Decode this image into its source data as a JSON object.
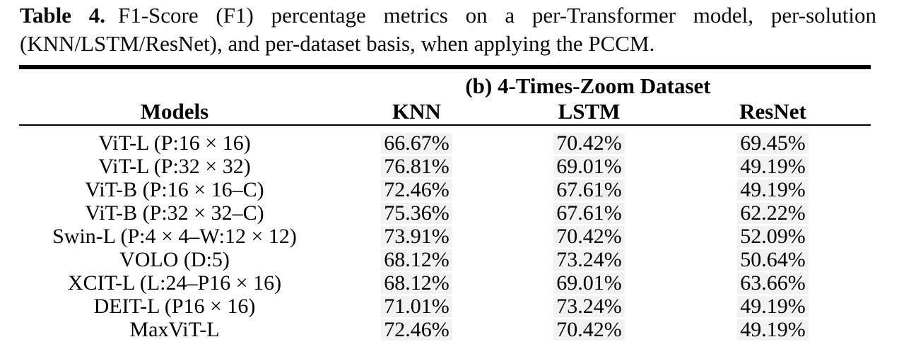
{
  "caption": {
    "label": "Table 4.",
    "line1": "F1-Score (F1) percentage metrics on a per-Transformer model, per-solution",
    "line2": "(KNN/LSTM/ResNet), and per-dataset basis, when applying the PCCM."
  },
  "table": {
    "group_header": "(b) 4-Times-Zoom Dataset",
    "columns": [
      "Models",
      "KNN",
      "LSTM",
      "ResNet"
    ],
    "rows": [
      {
        "model": "ViT-L (P:16 × 16)",
        "knn": "66.67%",
        "lstm": "70.42%",
        "resnet": "69.45%"
      },
      {
        "model": "ViT-L (P:32 × 32)",
        "knn": "76.81%",
        "lstm": "69.01%",
        "resnet": "49.19%"
      },
      {
        "model": "ViT-B (P:16 × 16–C)",
        "knn": "72.46%",
        "lstm": "67.61%",
        "resnet": "49.19%"
      },
      {
        "model": "ViT-B (P:32 × 32–C)",
        "knn": "75.36%",
        "lstm": "67.61%",
        "resnet": "62.22%"
      },
      {
        "model": "Swin-L (P:4 × 4–W:12 × 12)",
        "knn": "73.91%",
        "lstm": "70.42%",
        "resnet": "52.09%"
      },
      {
        "model": "VOLO (D:5)",
        "knn": "68.12%",
        "lstm": "73.24%",
        "resnet": "50.64%"
      },
      {
        "model": "XCIT-L (L:24–P16 × 16)",
        "knn": "68.12%",
        "lstm": "69.01%",
        "resnet": "63.66%"
      },
      {
        "model": "DEIT-L (P16 × 16)",
        "knn": "71.01%",
        "lstm": "73.24%",
        "resnet": "49.19%"
      },
      {
        "model": "MaxViT-L",
        "knn": "72.46%",
        "lstm": "70.42%",
        "resnet": "49.19%"
      }
    ]
  },
  "colors": {
    "text": "#000000",
    "rule": "#000000",
    "value_highlight": "#f2f2f2"
  }
}
